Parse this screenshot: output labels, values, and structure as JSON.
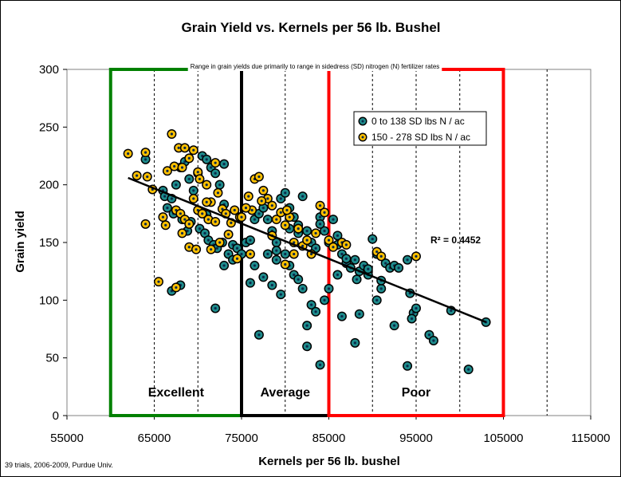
{
  "chart_data": {
    "type": "scatter",
    "title": "Grain Yield vs. Kernels per 56 lb. Bushel",
    "xlabel": "Kernels per 56 lb. bushel",
    "ylabel": "Grain yield",
    "xlim": [
      55000,
      115000
    ],
    "ylim": [
      0,
      300
    ],
    "xticks": [
      "55000",
      "65000",
      "75000",
      "85000",
      "95000",
      "105000",
      "115000"
    ],
    "yticks": [
      "0",
      "50",
      "100",
      "150",
      "200",
      "250",
      "300"
    ],
    "grid": "vertical dashed every 5000",
    "legend_position": "top-right",
    "annotation": "Range in grain yields due primarily to range in sidedress (SD) nitrogen (N) fertilizer rates",
    "r_squared": "R² = 0.4452",
    "footnote": "39 trials, 2006-2009, Purdue Univ.",
    "zones": [
      {
        "label": "Excellent",
        "x0": 60000,
        "x1": 75000,
        "color": "#008000"
      },
      {
        "label": "Average",
        "x0": 75000,
        "x1": 85000,
        "color": "#000000"
      },
      {
        "label": "Poor",
        "x0": 85000,
        "x1": 105000,
        "color": "#ff0000"
      }
    ],
    "trendline": {
      "x": [
        62000,
        103000
      ],
      "y": [
        206,
        81
      ]
    },
    "series": [
      {
        "name": "0 to 138 SD lbs N / ac",
        "color": "#1e8c8c",
        "points": [
          [
            64000,
            222
          ],
          [
            66000,
            195
          ],
          [
            66200,
            190
          ],
          [
            67000,
            188
          ],
          [
            67500,
            200
          ],
          [
            68000,
            215
          ],
          [
            68500,
            220
          ],
          [
            69000,
            205
          ],
          [
            69500,
            195
          ],
          [
            70000,
            210
          ],
          [
            70500,
            225
          ],
          [
            71000,
            222
          ],
          [
            71500,
            215
          ],
          [
            72000,
            210
          ],
          [
            72500,
            200
          ],
          [
            73000,
            218
          ],
          [
            66500,
            180
          ],
          [
            67200,
            175
          ],
          [
            68200,
            170
          ],
          [
            68800,
            160
          ],
          [
            69200,
            168
          ],
          [
            70200,
            162
          ],
          [
            70800,
            158
          ],
          [
            71200,
            152
          ],
          [
            71800,
            148
          ],
          [
            72200,
            145
          ],
          [
            72800,
            150
          ],
          [
            73500,
            140
          ],
          [
            74000,
            148
          ],
          [
            74500,
            145
          ],
          [
            67000,
            108
          ],
          [
            68000,
            113
          ],
          [
            72000,
            93
          ],
          [
            73000,
            130
          ],
          [
            74000,
            135
          ],
          [
            75000,
            140
          ],
          [
            75500,
            150
          ],
          [
            76000,
            152
          ],
          [
            76500,
            170
          ],
          [
            77000,
            175
          ],
          [
            77500,
            180
          ],
          [
            78000,
            170
          ],
          [
            78500,
            160
          ],
          [
            79000,
            150
          ],
          [
            79500,
            188
          ],
          [
            80000,
            193
          ],
          [
            80500,
            180
          ],
          [
            81000,
            172
          ],
          [
            81500,
            165
          ],
          [
            82000,
            190
          ],
          [
            82500,
            160
          ],
          [
            83000,
            150
          ],
          [
            83500,
            145
          ],
          [
            84000,
            172
          ],
          [
            84500,
            160
          ],
          [
            85000,
            150
          ],
          [
            85500,
            170
          ],
          [
            86000,
            148
          ],
          [
            86500,
            140
          ],
          [
            87000,
            132
          ],
          [
            87500,
            128
          ],
          [
            88000,
            135
          ],
          [
            88500,
            125
          ],
          [
            89000,
            130
          ],
          [
            89500,
            122
          ],
          [
            90000,
            153
          ],
          [
            90500,
            140
          ],
          [
            91000,
            110
          ],
          [
            91500,
            132
          ],
          [
            92000,
            128
          ],
          [
            92500,
            130
          ],
          [
            93000,
            128
          ],
          [
            94000,
            135
          ],
          [
            94300,
            106
          ],
          [
            94700,
            89
          ],
          [
            95000,
            93
          ],
          [
            76000,
            115
          ],
          [
            76500,
            130
          ],
          [
            77000,
            70
          ],
          [
            77500,
            120
          ],
          [
            78000,
            140
          ],
          [
            78500,
            113
          ],
          [
            79000,
            135
          ],
          [
            79500,
            105
          ],
          [
            80000,
            140
          ],
          [
            80500,
            130
          ],
          [
            81000,
            122
          ],
          [
            81500,
            118
          ],
          [
            82000,
            110
          ],
          [
            82500,
            78
          ],
          [
            82500,
            60
          ],
          [
            83000,
            96
          ],
          [
            83500,
            90
          ],
          [
            84000,
            44
          ],
          [
            84500,
            100
          ],
          [
            85000,
            110
          ],
          [
            86000,
            122
          ],
          [
            86500,
            86
          ],
          [
            88000,
            63
          ],
          [
            88500,
            88
          ],
          [
            90500,
            100
          ],
          [
            92500,
            78
          ],
          [
            94000,
            43
          ],
          [
            94500,
            84
          ],
          [
            96500,
            70
          ],
          [
            97000,
            65
          ],
          [
            99000,
            91
          ],
          [
            101000,
            40
          ],
          [
            103000,
            81
          ],
          [
            79000,
            143
          ],
          [
            80500,
            162
          ],
          [
            81500,
            158
          ],
          [
            84000,
            166
          ],
          [
            86000,
            156
          ],
          [
            87000,
            136
          ],
          [
            88200,
            118
          ],
          [
            89500,
            127
          ],
          [
            91000,
            117
          ],
          [
            71000,
            174
          ],
          [
            73000,
            183
          ]
        ]
      },
      {
        "name": "150 - 278 SD lbs N / ac",
        "color": "#ffc000",
        "points": [
          [
            62000,
            227
          ],
          [
            63000,
            208
          ],
          [
            64000,
            228
          ],
          [
            64200,
            207
          ],
          [
            64800,
            196
          ],
          [
            66500,
            212
          ],
          [
            67000,
            244
          ],
          [
            67300,
            216
          ],
          [
            67800,
            232
          ],
          [
            68200,
            215
          ],
          [
            68500,
            232
          ],
          [
            69000,
            223
          ],
          [
            69500,
            230
          ],
          [
            70000,
            211
          ],
          [
            70200,
            205
          ],
          [
            71000,
            200
          ],
          [
            71500,
            185
          ],
          [
            72000,
            219
          ],
          [
            72300,
            193
          ],
          [
            66000,
            172
          ],
          [
            66300,
            165
          ],
          [
            67500,
            178
          ],
          [
            68000,
            175
          ],
          [
            68500,
            170
          ],
          [
            69000,
            166
          ],
          [
            69500,
            188
          ],
          [
            70000,
            178
          ],
          [
            70500,
            175
          ],
          [
            71000,
            185
          ],
          [
            71200,
            170
          ],
          [
            72000,
            168
          ],
          [
            72800,
            179
          ],
          [
            73200,
            175
          ],
          [
            73800,
            167
          ],
          [
            74200,
            178
          ],
          [
            74800,
            172
          ],
          [
            65500,
            116
          ],
          [
            67500,
            111
          ],
          [
            64000,
            166
          ],
          [
            69000,
            146
          ],
          [
            71500,
            144
          ],
          [
            72500,
            150
          ],
          [
            74500,
            136
          ],
          [
            75000,
            172
          ],
          [
            75800,
            190
          ],
          [
            76200,
            178
          ],
          [
            76500,
            205
          ],
          [
            77000,
            207
          ],
          [
            77500,
            195
          ],
          [
            78000,
            188
          ],
          [
            78500,
            182
          ],
          [
            79000,
            170
          ],
          [
            79500,
            176
          ],
          [
            80000,
            165
          ],
          [
            80500,
            172
          ],
          [
            81000,
            150
          ],
          [
            81500,
            162
          ],
          [
            82000,
            147
          ],
          [
            83000,
            140
          ],
          [
            84000,
            182
          ],
          [
            84500,
            176
          ],
          [
            85000,
            152
          ],
          [
            85500,
            146
          ],
          [
            86500,
            150
          ],
          [
            87000,
            148
          ],
          [
            90500,
            142
          ],
          [
            91000,
            138
          ],
          [
            95000,
            138
          ],
          [
            76000,
            140
          ],
          [
            78500,
            156
          ],
          [
            80000,
            131
          ],
          [
            81000,
            140
          ],
          [
            82500,
            152
          ],
          [
            83500,
            158
          ],
          [
            68200,
            158
          ],
          [
            69800,
            144
          ],
          [
            73500,
            157
          ],
          [
            75500,
            180
          ],
          [
            77300,
            186
          ],
          [
            80200,
            178
          ]
        ]
      }
    ]
  }
}
